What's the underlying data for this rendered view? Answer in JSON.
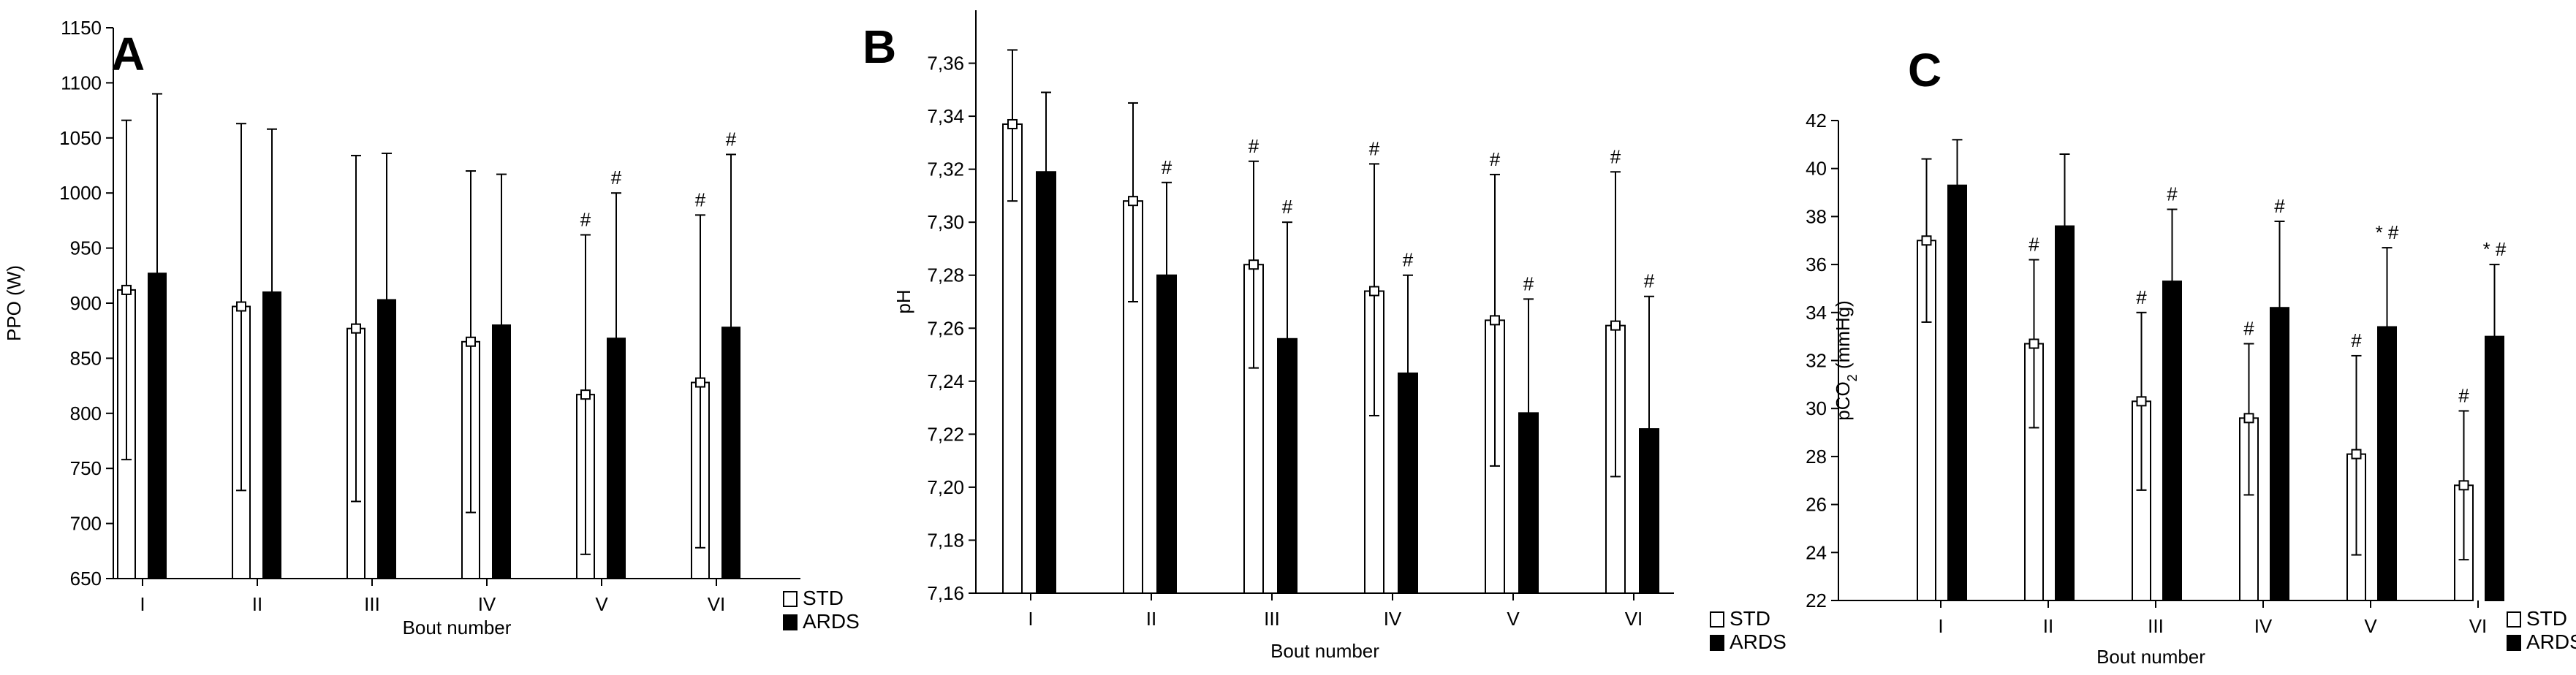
{
  "legend": {
    "std": "STD",
    "ards": "ARDS"
  },
  "colors": {
    "std_fill": "#ffffff",
    "ards_fill": "#000000",
    "stroke": "#000000"
  },
  "chart_data": [
    {
      "type": "bar",
      "panel": "A",
      "title": "",
      "xlabel": "Bout number",
      "ylabel": "PPO (W)",
      "categories": [
        "I",
        "II",
        "III",
        "IV",
        "V",
        "VI"
      ],
      "ylim": [
        650,
        1150
      ],
      "yticks": [
        650,
        700,
        750,
        800,
        850,
        900,
        950,
        1000,
        1050,
        1100,
        1150
      ],
      "tick_labels": [
        "650",
        "700",
        "750",
        "800",
        "850",
        "900",
        "950",
        "1000",
        "1050",
        "1100",
        "1150"
      ],
      "legend_position": "bottom-right",
      "series": [
        {
          "name": "STD",
          "values": [
            912,
            897,
            877,
            865,
            817,
            828
          ],
          "error_upper": [
            1066,
            1063,
            1034,
            1020,
            962,
            980
          ],
          "error_lower": [
            758,
            730,
            720,
            710,
            672,
            678
          ],
          "marks": [
            "",
            "",
            "",
            "",
            "#",
            "#"
          ]
        },
        {
          "name": "ARDS",
          "values": [
            927,
            910,
            903,
            880,
            868,
            878
          ],
          "error_upper": [
            1090,
            1058,
            1036,
            1017,
            1000,
            1035
          ],
          "error_lower": [],
          "marks": [
            "",
            "",
            "",
            "",
            "#",
            "#"
          ]
        }
      ]
    },
    {
      "type": "bar",
      "panel": "B",
      "title": "",
      "xlabel": "Bout number",
      "ylabel": "pH",
      "categories": [
        "I",
        "II",
        "III",
        "IV",
        "V",
        "VI"
      ],
      "ylim": [
        7.16,
        7.38
      ],
      "yticks": [
        7.16,
        7.18,
        7.2,
        7.22,
        7.24,
        7.26,
        7.28,
        7.3,
        7.32,
        7.34,
        7.36
      ],
      "tick_labels": [
        "7,16",
        "7,18",
        "7,20",
        "7,22",
        "7,24",
        "7,26",
        "7,28",
        "7,30",
        "7,32",
        "7,34",
        "7,36"
      ],
      "legend_position": "bottom-right",
      "series": [
        {
          "name": "STD",
          "values": [
            7.337,
            7.308,
            7.284,
            7.274,
            7.263,
            7.261
          ],
          "error_upper": [
            7.365,
            7.345,
            7.323,
            7.322,
            7.318,
            7.319
          ],
          "error_lower": [
            7.308,
            7.27,
            7.245,
            7.227,
            7.208,
            7.204
          ],
          "marks": [
            "",
            "",
            "#",
            "#",
            "#",
            "#"
          ]
        },
        {
          "name": "ARDS",
          "values": [
            7.319,
            7.28,
            7.256,
            7.243,
            7.228,
            7.222
          ],
          "error_upper": [
            7.349,
            7.315,
            7.3,
            7.28,
            7.271,
            7.272
          ],
          "error_lower": [],
          "marks": [
            "",
            "#",
            "#",
            "#",
            "#",
            "#"
          ]
        }
      ]
    },
    {
      "type": "bar",
      "panel": "C",
      "title": "",
      "xlabel": "Bout number",
      "ylabel": "pCO",
      "ylabel_sub": "2",
      "ylabel_unit": " (mmHg)",
      "categories": [
        "I",
        "II",
        "III",
        "IV",
        "V",
        "VI"
      ],
      "ylim": [
        22,
        42
      ],
      "yticks": [
        22,
        24,
        26,
        28,
        30,
        32,
        34,
        36,
        38,
        40,
        42
      ],
      "tick_labels": [
        "22",
        "24",
        "26",
        "28",
        "30",
        "32",
        "34",
        "36",
        "38",
        "40",
        "42"
      ],
      "legend_position": "bottom-right",
      "series": [
        {
          "name": "STD",
          "values": [
            37.0,
            32.7,
            30.3,
            29.6,
            28.1,
            26.8
          ],
          "error_upper": [
            40.4,
            36.2,
            34.0,
            32.7,
            32.2,
            29.9
          ],
          "error_lower": [
            33.6,
            29.2,
            26.6,
            26.4,
            23.9,
            23.7
          ],
          "marks": [
            "",
            "#",
            "#",
            "#",
            "#",
            "#"
          ]
        },
        {
          "name": "ARDS",
          "values": [
            39.3,
            37.6,
            35.3,
            34.2,
            33.4,
            33.0
          ],
          "error_upper": [
            41.2,
            40.6,
            38.3,
            37.8,
            36.7,
            36.0
          ],
          "error_lower": [],
          "marks": [
            "",
            "",
            "#",
            "#",
            "* #",
            "* #"
          ]
        }
      ]
    }
  ]
}
